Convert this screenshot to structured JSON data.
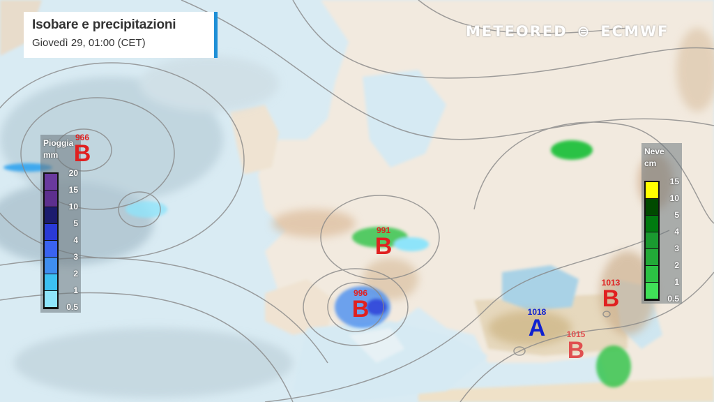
{
  "header": {
    "title": "Isobare e precipitazioni",
    "subtitle": "Giovedì 29, 01:00 (CET)"
  },
  "logos": {
    "meteored": "METEORED",
    "ecmwf": "ECMWF"
  },
  "rain_legend": {
    "title": "Pioggia",
    "unit": "mm",
    "levels": [
      "20",
      "15",
      "10",
      "5",
      "4",
      "3",
      "2",
      "1",
      "0.5"
    ],
    "colors": [
      "#6a3a9e",
      "#5d2f8e",
      "#1c1c6e",
      "#2a3ad6",
      "#3a63f0",
      "#3f8ef0",
      "#3cc0f2",
      "#8ee4fa"
    ]
  },
  "snow_legend": {
    "title": "Neve",
    "unit": "cm",
    "levels": [
      "15",
      "10",
      "5",
      "4",
      "3",
      "2",
      "1",
      "0.5"
    ],
    "colors": [
      "#ffff00",
      "#004a00",
      "#007a10",
      "#1a9a30",
      "#22aa38",
      "#2cc244",
      "#40e058"
    ]
  },
  "pressure_centers": [
    {
      "type": "B",
      "value": "966",
      "color": "#e02020"
    },
    {
      "type": "B",
      "value": "991",
      "color": "#e02020"
    },
    {
      "type": "B",
      "value": "996",
      "color": "#e02020"
    },
    {
      "type": "A",
      "value": "1018",
      "color": "#1020d0"
    },
    {
      "type": "B",
      "value": "1015",
      "color": "#e05050"
    },
    {
      "type": "B",
      "value": "1013",
      "color": "#e02020"
    }
  ]
}
